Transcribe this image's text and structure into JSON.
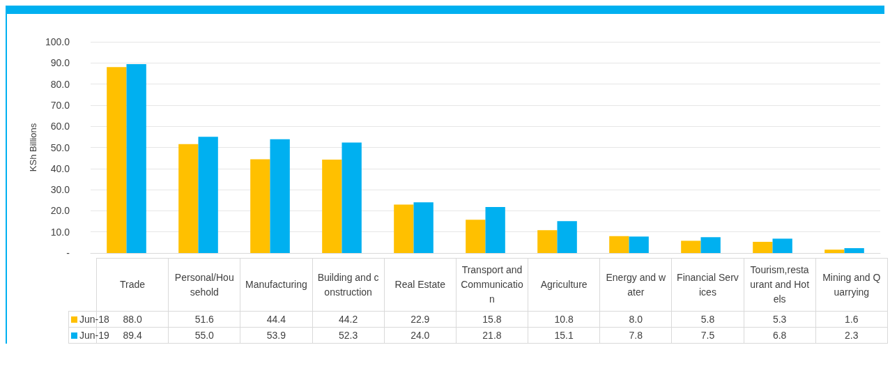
{
  "chart_data": {
    "type": "bar",
    "ylabel": "KSh Billions",
    "categories": [
      "Trade",
      "Personal/Household",
      "Manufacturing",
      "Building and construction",
      "Real Estate",
      "Transport and Communication",
      "Agriculture",
      "Energy and water",
      "Financial Services",
      "Tourism,restaurant and Hotels",
      "Mining and Quarrying"
    ],
    "series": [
      {
        "name": "Jun-18",
        "color": "#ffc000",
        "values": [
          88.0,
          51.6,
          44.4,
          44.2,
          22.9,
          15.8,
          10.8,
          8.0,
          5.8,
          5.3,
          1.6
        ],
        "value_labels": [
          "88.0",
          "51.6",
          "44.4",
          "44.2",
          "22.9",
          "15.8",
          "10.8",
          "8.0",
          "5.8",
          "5.3",
          "1.6"
        ]
      },
      {
        "name": "Jun-19",
        "color": "#00b0f0",
        "values": [
          89.4,
          55.0,
          53.9,
          52.3,
          24.0,
          21.8,
          15.1,
          7.8,
          7.5,
          6.8,
          2.3
        ],
        "value_labels": [
          "89.4",
          "55.0",
          "53.9",
          "52.3",
          "24.0",
          "21.8",
          "15.1",
          "7.8",
          "7.5",
          "6.8",
          "2.3"
        ]
      }
    ],
    "ylim": [
      0,
      100
    ],
    "yticks": [
      {
        "value": 0,
        "label": "-"
      },
      {
        "value": 10,
        "label": "10.0"
      },
      {
        "value": 20,
        "label": "20.0"
      },
      {
        "value": 30,
        "label": "30.0"
      },
      {
        "value": 40,
        "label": "40.0"
      },
      {
        "value": 50,
        "label": "50.0"
      },
      {
        "value": 60,
        "label": "60.0"
      },
      {
        "value": 70,
        "label": "70.0"
      },
      {
        "value": 80,
        "label": "80.0"
      },
      {
        "value": 90,
        "label": "90.0"
      },
      {
        "value": 100,
        "label": "100.0"
      }
    ],
    "grid": "y",
    "legend": "bottom"
  }
}
